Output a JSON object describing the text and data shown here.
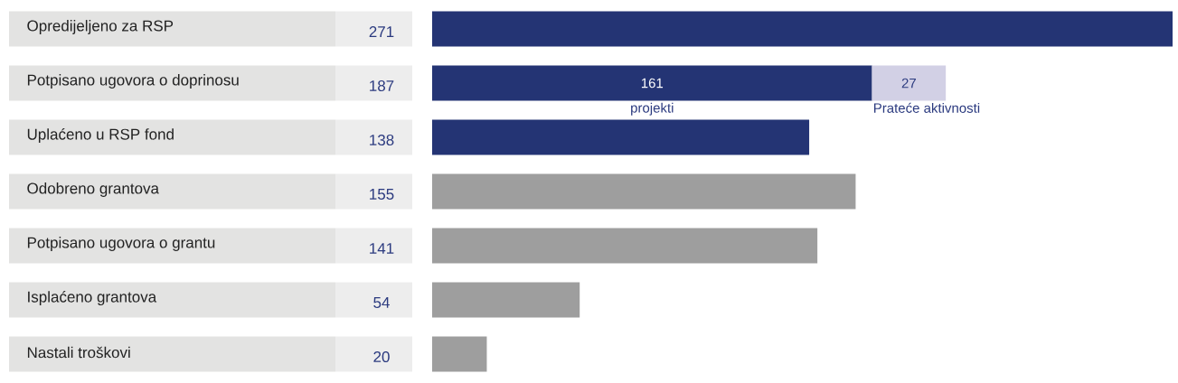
{
  "chart_data": {
    "type": "bar",
    "orientation": "horizontal",
    "stacked": true,
    "categories": [
      "Opredijeljeno za RSP",
      "Potpisano ugovora o doprinosu",
      "Uplaćeno u RSP fond",
      "Odobreno grantova",
      "Potpisano ugovora o grantu",
      "Isplaćeno grantova",
      "Nastali troškovi"
    ],
    "xlim": [
      0,
      271
    ],
    "tick_labels": false,
    "totals": [
      "271",
      "187",
      "138",
      "155",
      "141",
      "54",
      "20"
    ],
    "series": [
      {
        "name": "projekti",
        "colors": [
          "#243474",
          "#243474",
          "#243474",
          "#9e9e9e",
          "#9e9e9e",
          "#9e9e9e",
          "#9e9e9e"
        ],
        "values": [
          271,
          161,
          138,
          155,
          141,
          54,
          20
        ],
        "value_labels": [
          null,
          "161",
          null,
          null,
          null,
          null,
          null
        ]
      },
      {
        "name": "Prateće aktivnosti",
        "color": "#d2d0e5",
        "values": [
          null,
          27,
          null,
          null,
          null,
          null,
          null
        ],
        "value_labels": [
          null,
          "27",
          null,
          null,
          null,
          null,
          null
        ]
      }
    ]
  }
}
